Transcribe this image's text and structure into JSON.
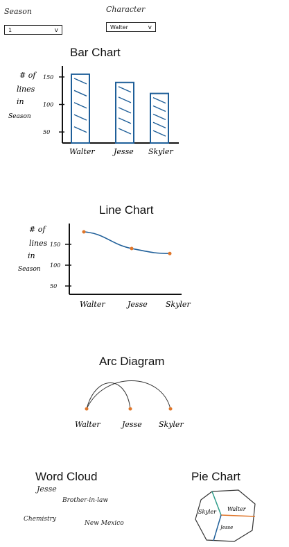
{
  "filters": {
    "season": {
      "label": "Season",
      "value": "1"
    },
    "character": {
      "label": "Character",
      "value": "Walter"
    }
  },
  "bar_chart": {
    "title": "Bar Chart",
    "ylabel_lines": [
      "# of",
      "lines",
      "in",
      "Season"
    ],
    "yticks": [
      "150",
      "100",
      "50"
    ]
  },
  "line_chart": {
    "title": "Line Chart",
    "ylabel_lines": [
      "# of",
      "lines",
      "in",
      "Season"
    ],
    "yticks": [
      "150",
      "100",
      "50"
    ]
  },
  "arc_diagram": {
    "title": "Arc Diagram",
    "nodes": [
      "Walter",
      "Jesse",
      "Skyler"
    ]
  },
  "word_cloud": {
    "title": "Word Cloud",
    "words": [
      "Jesse",
      "Brother-in-law",
      "Chemistry",
      "New Mexico"
    ]
  },
  "pie_chart": {
    "title": "Pie Chart",
    "slices": [
      "Skyler",
      "Walter",
      "Jesse"
    ]
  },
  "chart_data": [
    {
      "type": "bar",
      "title": "Bar Chart",
      "ylabel": "# of lines in Season",
      "categories": [
        "Walter",
        "Jesse",
        "Skyler"
      ],
      "values": [
        155,
        140,
        120
      ],
      "ylim": [
        30,
        170
      ],
      "yticks": [
        50,
        100,
        150
      ],
      "bar_color": "#1f5f99"
    },
    {
      "type": "line",
      "title": "Line Chart",
      "ylabel": "# of lines in Season",
      "categories": [
        "Walter",
        "Jesse",
        "Skyler"
      ],
      "values": [
        180,
        140,
        128
      ],
      "ylim": [
        30,
        200
      ],
      "yticks": [
        50,
        100,
        150
      ],
      "line_color": "#1f5f99",
      "point_color": "#e0762a"
    }
  ]
}
